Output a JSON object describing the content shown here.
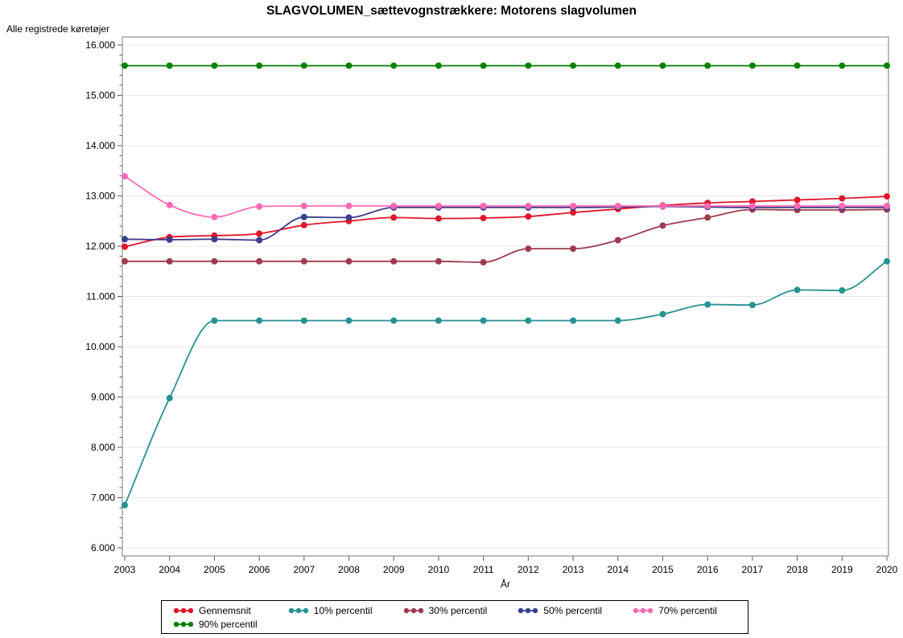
{
  "chart": {
    "title": "SLAGVOLUMEN_sættevognstrækkere: Motorens slagvolumen",
    "y_axis_top_label": "Alle registrede køretøjer",
    "x_axis_label": "År"
  },
  "chart_data": {
    "type": "line",
    "title": "SLAGVOLUMEN_sættevognstrækkere: Motorens slagvolumen",
    "xlabel": "År",
    "ylabel": "Alle registrede køretøjer",
    "x": [
      "2003",
      "2004",
      "2005",
      "2006",
      "2007",
      "2008",
      "2009",
      "2010",
      "2011",
      "2012",
      "2013",
      "2014",
      "2015",
      "2016",
      "2017",
      "2018",
      "2019",
      "2020"
    ],
    "ylim": [
      6000,
      16000
    ],
    "y_tick_interval": 1000,
    "y_minor_tick_interval": 200,
    "y_tick_labels": [
      "6.000",
      "7.000",
      "8.000",
      "9.000",
      "10.000",
      "11.000",
      "12.000",
      "13.000",
      "14.000",
      "15.000",
      "16.000"
    ],
    "grid": "horizontal",
    "legend_position": "bottom",
    "legend_rows": [
      5,
      1
    ],
    "colors": {
      "gridline": "#e8e8e8",
      "frame": "#8f8f8f",
      "tick": "#5a5a5a",
      "text": "#000000"
    },
    "series": [
      {
        "name": "Gennemsnit",
        "color": "#e0162b",
        "values": [
          11990,
          12180,
          12210,
          12250,
          12420,
          12500,
          12570,
          12550,
          12560,
          12590,
          12670,
          12740,
          12810,
          12860,
          12890,
          12920,
          12950,
          12990
        ]
      },
      {
        "name": "10% percentil",
        "color": "#259390",
        "values": [
          6850,
          8980,
          10520,
          10520,
          10520,
          10520,
          10520,
          10520,
          10520,
          10520,
          10520,
          10520,
          10650,
          10840,
          10830,
          11130,
          11120,
          11700
        ]
      },
      {
        "name": "30% percentil",
        "color": "#9e3a50",
        "values": [
          11700,
          11700,
          11700,
          11700,
          11700,
          11700,
          11700,
          11700,
          11680,
          11950,
          11950,
          12120,
          12410,
          12570,
          12730,
          12720,
          12720,
          12730
        ]
      },
      {
        "name": "50% percentil",
        "color": "#3b3e8c",
        "values": [
          12140,
          12130,
          12140,
          12120,
          12580,
          12570,
          12770,
          12770,
          12770,
          12770,
          12770,
          12780,
          12790,
          12780,
          12770,
          12770,
          12770,
          12770
        ]
      },
      {
        "name": "70% percentil",
        "color": "#ff69b4",
        "values": [
          13390,
          12820,
          12580,
          12790,
          12800,
          12800,
          12800,
          12800,
          12800,
          12800,
          12800,
          12800,
          12800,
          12800,
          12800,
          12800,
          12800,
          12800
        ]
      },
      {
        "name": "90% percentil",
        "color": "#028102",
        "values": [
          15590,
          15590,
          15590,
          15590,
          15590,
          15590,
          15590,
          15590,
          15590,
          15590,
          15590,
          15590,
          15590,
          15590,
          15590,
          15590,
          15590,
          15590
        ]
      }
    ]
  }
}
